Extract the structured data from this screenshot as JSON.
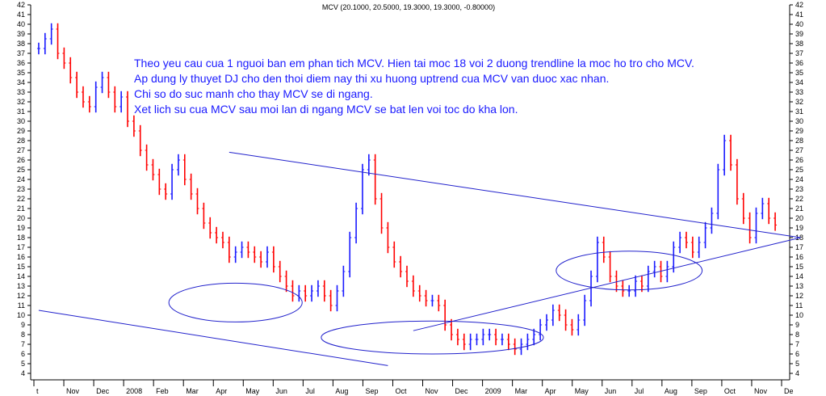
{
  "chart_data": {
    "type": "bar",
    "title": "MCV (20.1000, 20.5000, 19.3000, 19.3000, -0.80000)",
    "subtitle": "",
    "xlabel": "",
    "ylabel": "",
    "ylim": [
      4,
      42
    ],
    "y_ticks": [
      4,
      5,
      6,
      7,
      8,
      9,
      10,
      11,
      12,
      13,
      14,
      15,
      16,
      17,
      18,
      19,
      20,
      21,
      22,
      23,
      24,
      25,
      26,
      27,
      28,
      29,
      30,
      31,
      32,
      33,
      34,
      35,
      36,
      37,
      38,
      39,
      40,
      41,
      42
    ],
    "x_ticks": [
      "t",
      "Nov",
      "Dec",
      "2008",
      "Feb",
      "Mar",
      "Apr",
      "May",
      "Jun",
      "Jul",
      "Aug",
      "Sep",
      "Oct",
      "Nov",
      "Dec",
      "2009",
      "Mar",
      "Apr",
      "May",
      "Jun",
      "Jul",
      "Aug",
      "Sep",
      "Oct",
      "Nov",
      "De"
    ],
    "series": [
      {
        "values": [
          37.5,
          38.5,
          39.5,
          37.0,
          36.0,
          34.5,
          33.0,
          32.0,
          31.5,
          33.5,
          34.5,
          33.0,
          31.5,
          32.5,
          30.0,
          29.0,
          27.0,
          25.5,
          24.5,
          23.0,
          22.5,
          25.0,
          26.0,
          24.0,
          22.5,
          21.0,
          19.5,
          18.5,
          18.0,
          17.5,
          16.0,
          16.5,
          17.0,
          16.5,
          16.0,
          15.5,
          16.5,
          15.0,
          14.0,
          13.0,
          12.0,
          12.5,
          12.0,
          12.5,
          13.0,
          12.0,
          11.0,
          12.5,
          14.5,
          18.0,
          21.0,
          25.0,
          26.0,
          22.0,
          19.0,
          17.0,
          15.5,
          14.5,
          13.5,
          12.5,
          12.0,
          11.5,
          11.5,
          11.0,
          9.0,
          8.0,
          7.5,
          7.0,
          7.5,
          7.5,
          8.0,
          8.0,
          7.5,
          7.5,
          7.0,
          6.5,
          7.0,
          7.5,
          8.0,
          9.0,
          9.5,
          10.5,
          10.0,
          9.0,
          8.5,
          9.5,
          11.5,
          14.0,
          17.5,
          16.0,
          14.0,
          13.0,
          12.5,
          12.5,
          13.5,
          13.0,
          14.5,
          15.0,
          14.0,
          15.0,
          17.0,
          18.0,
          17.5,
          16.5,
          17.5,
          19.0,
          20.5,
          25.0,
          28.0,
          25.5,
          22.0,
          20.0,
          18.0,
          20.5,
          21.5,
          20.0,
          19.3
        ]
      }
    ],
    "annotations": [
      "Theo yeu cau cua 1 nguoi ban em phan tich MCV. Hien tai moc 18 voi 2 duong trendline la moc ho tro cho MCV.",
      "Ap dung ly thuyet DJ cho den thoi diem nay thi xu huong uptrend cua MCV van duoc xac nhan.",
      "Chi so do suc manh cho thay MCV se di ngang.",
      "Xet lich su cua MCV sau moi lan di ngang MCV se bat len voi toc do kha lon."
    ],
    "trendlines": [
      {
        "from": [
          0,
          10.5
        ],
        "to": [
          55,
          4.8
        ]
      },
      {
        "from": [
          59,
          8.4
        ],
        "to": [
          120,
          18.0
        ]
      },
      {
        "from": [
          30,
          26.8
        ],
        "to": [
          120,
          18.0
        ]
      }
    ],
    "ellipses": [
      {
        "cx": 31,
        "cy": 11.3,
        "rx": 10.5,
        "ry": 2.0
      },
      {
        "cx": 62,
        "cy": 7.7,
        "rx": 17.5,
        "ry": 1.7
      },
      {
        "cx": 93,
        "cy": 14.6,
        "rx": 11.5,
        "ry": 2.0
      }
    ],
    "grid": false,
    "legend": "none",
    "colors": {
      "up": "#1a1aff",
      "down": "#ff0000",
      "lines": "#2222cc",
      "annotation": "#1a1aff"
    }
  }
}
